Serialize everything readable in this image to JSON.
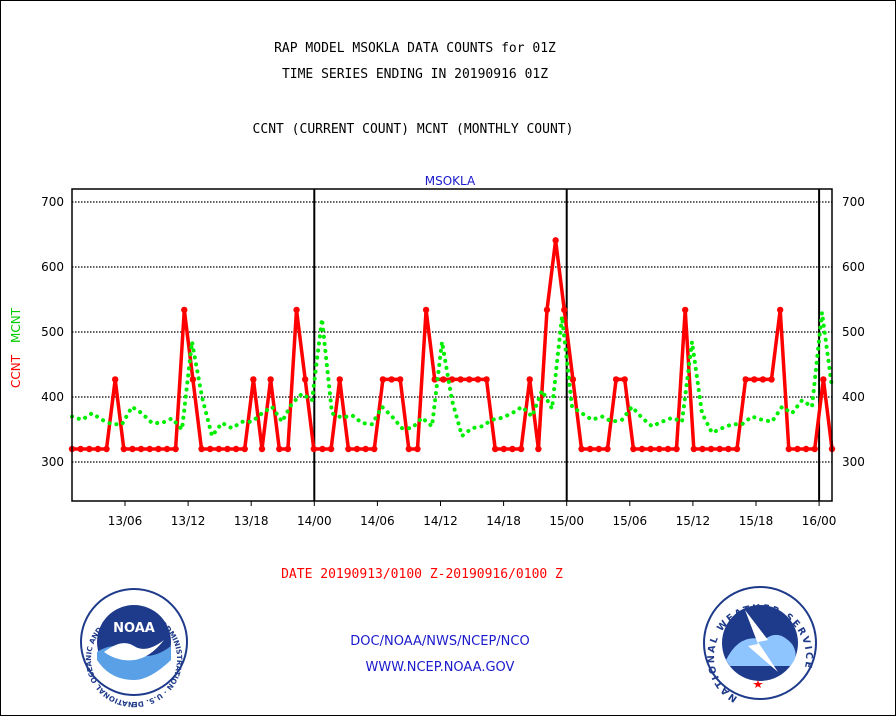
{
  "page": {
    "title_line1": "RAP MODEL MSOKLA DATA COUNTS for 01Z",
    "title_line2": "TIME SERIES ENDING IN 20190916 01Z",
    "subtitle": "CCNT (CURRENT COUNT) MCNT (MONTHLY COUNT)",
    "date_range": "DATE 20190913/0100 Z-20190916/0100 Z",
    "credit": "DOC/NOAA/NWS/NCEP/NCO",
    "url": "WWW.NCEP.NOAA.GOV"
  },
  "logos": {
    "noaa_text": "NOAA",
    "noaa_ring_text": "NATIONAL OCEANIC AND ATMOSPHERIC ADMINISTRATION · U.S. DEPARTMENT OF COMMERCE ·",
    "nws_ring_text": "NATIONAL WEATHER SERVICE"
  },
  "chart_data": {
    "type": "line",
    "station_label": "MSOKLA",
    "x_tick_labels": [
      "13/06",
      "13/12",
      "13/18",
      "14/00",
      "14/06",
      "14/12",
      "14/18",
      "15/00",
      "15/06",
      "15/12",
      "15/18",
      "16/00"
    ],
    "ylim": [
      240,
      720
    ],
    "y_ticks": [
      300,
      400,
      500,
      600,
      700
    ],
    "grid": true,
    "day_markers": [
      "14/00",
      "15/00",
      "16/00"
    ],
    "series": [
      {
        "name": "CCNT",
        "color": "#ff0000",
        "style": "solid",
        "values": [
          320,
          320,
          320,
          320,
          320,
          427,
          320,
          320,
          320,
          320,
          320,
          320,
          320,
          534,
          427,
          320,
          320,
          320,
          320,
          320,
          320,
          427,
          320,
          427,
          320,
          320,
          534,
          427,
          320,
          320,
          320,
          427,
          320,
          320,
          320,
          320,
          427,
          427,
          427,
          320,
          320,
          534,
          427,
          427,
          427,
          427,
          427,
          427,
          427,
          320,
          320,
          320,
          320,
          427,
          320,
          534,
          641,
          534,
          427,
          320,
          320,
          320,
          320,
          427,
          427,
          320,
          320,
          320,
          320,
          320,
          320,
          534,
          320,
          320,
          320,
          320,
          320,
          320,
          427,
          427,
          427,
          427,
          534,
          320,
          320,
          320,
          320,
          427,
          320
        ]
      },
      {
        "name": "MCNT",
        "color": "#00ee00",
        "style": "dotted",
        "values": [
          370,
          365,
          375,
          365,
          358,
          358,
          385,
          375,
          360,
          360,
          367,
          350,
          485,
          400,
          340,
          360,
          352,
          362,
          362,
          375,
          385,
          362,
          390,
          405,
          395,
          520,
          375,
          368,
          372,
          360,
          358,
          385,
          370,
          352,
          352,
          368,
          355,
          485,
          395,
          340,
          352,
          355,
          365,
          368,
          375,
          385,
          370,
          410,
          382,
          524,
          385,
          375,
          365,
          370,
          362,
          365,
          385,
          368,
          355,
          362,
          368,
          362,
          485,
          375,
          345,
          352,
          358,
          358,
          370,
          365,
          362,
          385,
          375,
          395,
          385,
          530,
          415
        ]
      }
    ]
  }
}
